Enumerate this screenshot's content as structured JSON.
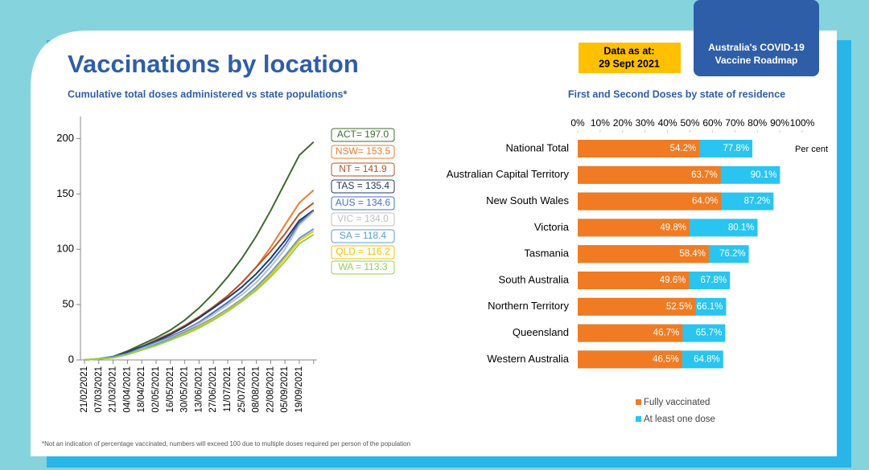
{
  "header": {
    "title": "Vaccinations by location",
    "date_label": "Data as at:",
    "date": "29 Sept 2021",
    "roadmap_line1": "Australia's COVID-19",
    "roadmap_line2": "Vaccine Roadmap",
    "footnote": "*Not an indication of percentage vaccinated, numbers will exceed 100 due to multiple doses required per person of the population"
  },
  "chart_data": [
    {
      "type": "line",
      "title": "Cumulative total doses administered vs state populations*",
      "categories": [
        "21/02/2021",
        "07/03/2021",
        "21/03/2021",
        "04/04/2021",
        "18/04/2021",
        "02/05/2021",
        "16/05/2021",
        "30/05/2021",
        "13/06/2021",
        "27/06/2021",
        "11/07/2021",
        "25/07/2021",
        "08/08/2021",
        "22/08/2021",
        "05/09/2021",
        "19/09/2021",
        null
      ],
      "ylim": [
        0,
        220
      ],
      "yticks": [
        0,
        50,
        100,
        150,
        200
      ],
      "series": [
        {
          "name": "ACT= 197.0",
          "color": "#3d6b2e",
          "values": [
            0,
            1,
            3,
            8,
            14,
            20,
            27,
            36,
            47,
            60,
            75,
            92,
            112,
            135,
            160,
            185,
            197
          ]
        },
        {
          "name": "NSW= 153.5",
          "color": "#ed7d31",
          "values": [
            0,
            1,
            3,
            7,
            12,
            17,
            23,
            30,
            38,
            48,
            58,
            70,
            84,
            102,
            122,
            142,
            153.5
          ]
        },
        {
          "name": "NT = 141.9",
          "color": "#b4522a",
          "values": [
            0,
            1,
            3,
            7,
            12,
            18,
            24,
            31,
            39,
            48,
            58,
            70,
            84,
            98,
            114,
            132,
            141.9
          ]
        },
        {
          "name": "TAS = 135.4",
          "color": "#1f3864",
          "values": [
            0,
            1,
            3,
            7,
            12,
            17,
            23,
            30,
            38,
            47,
            56,
            66,
            78,
            92,
            108,
            126,
            135.4
          ]
        },
        {
          "name": "AUS = 134.6",
          "color": "#4472c4",
          "values": [
            0,
            1,
            3,
            6,
            11,
            16,
            21,
            27,
            34,
            43,
            52,
            62,
            74,
            88,
            104,
            124,
            134.6
          ]
        },
        {
          "name": "VIC = 134.0",
          "color": "#bfbfbf",
          "values": [
            0,
            1,
            2,
            5,
            10,
            15,
            20,
            26,
            33,
            41,
            50,
            59,
            70,
            84,
            100,
            122,
            134
          ]
        },
        {
          "name": "SA = 118.4",
          "color": "#5b9bd5",
          "values": [
            0,
            1,
            2,
            5,
            9,
            14,
            19,
            25,
            31,
            38,
            46,
            55,
            66,
            79,
            94,
            110,
            118.4
          ]
        },
        {
          "name": "QLD = 116.2",
          "color": "#f2c200",
          "values": [
            0,
            1,
            2,
            5,
            9,
            13,
            18,
            24,
            30,
            37,
            45,
            54,
            64,
            77,
            92,
            108,
            116.2
          ]
        },
        {
          "name": "WA = 113.3",
          "color": "#92d050",
          "values": [
            0,
            1,
            2,
            5,
            9,
            13,
            18,
            23,
            29,
            36,
            44,
            53,
            63,
            75,
            89,
            105,
            113.3
          ]
        }
      ]
    },
    {
      "type": "bar",
      "orientation": "horizontal",
      "overlap": true,
      "title": "First and Second Doses by state of residence",
      "x_label": "Per cent",
      "categories": [
        "National Total",
        "Australian Capital Territory",
        "New South Wales",
        "Victoria",
        "Tasmania",
        "South Australia",
        "Northern Territory",
        "Queensland",
        "Western Australia"
      ],
      "xlim": [
        0,
        100
      ],
      "xticks": [
        {
          "value": 0,
          "label": "0%"
        },
        {
          "value": 10,
          "label": "10%"
        },
        {
          "value": 20,
          "label": "20%"
        },
        {
          "value": 30,
          "label": "30%"
        },
        {
          "value": 40,
          "label": "40%"
        },
        {
          "value": 50,
          "label": "50%"
        },
        {
          "value": 60,
          "label": "60%"
        },
        {
          "value": 70,
          "label": "70%"
        },
        {
          "value": 80,
          "label": "80%"
        },
        {
          "value": 90,
          "label": "90%"
        },
        {
          "value": 100,
          "label": "100%"
        }
      ],
      "series": [
        {
          "name": "At least one dose",
          "color": "#29c4f0",
          "values": [
            77.8,
            90.1,
            87.2,
            80.1,
            76.2,
            67.8,
            66.1,
            65.7,
            64.8
          ],
          "value_labels": [
            "77.8%",
            "90.1%",
            "87.2%",
            "80.1%",
            "76.2%",
            "67.8%",
            "66.1%",
            "65.7%",
            "64.8%"
          ]
        },
        {
          "name": "Fully vaccinated",
          "color": "#f07b22",
          "values": [
            54.2,
            63.7,
            64.0,
            49.8,
            58.4,
            49.6,
            52.5,
            46.7,
            46.5
          ],
          "value_labels": [
            "54.2%",
            "63.7%",
            "64.0%",
            "49.8%",
            "58.4%",
            "49.6%",
            "52.5%",
            "46.7%",
            "46.5%"
          ]
        }
      ]
    }
  ]
}
